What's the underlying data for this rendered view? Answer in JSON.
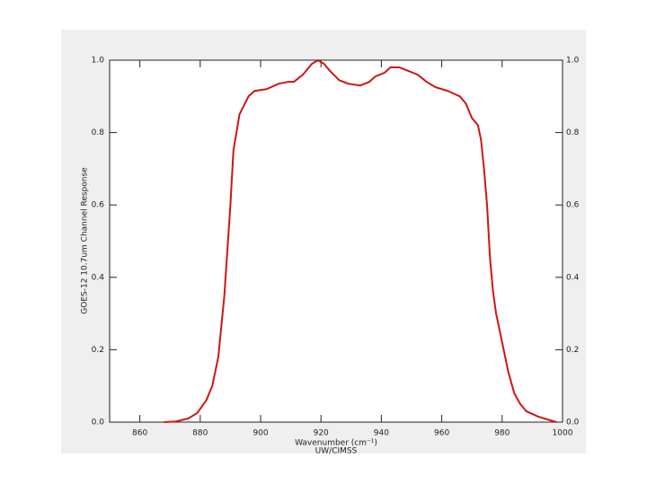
{
  "chart_data": {
    "type": "line",
    "xlabel": "Wavenumber (cm⁻¹)",
    "ylabel": "GOES-12 10.7um Channel Response",
    "footer": "UW/CIMSS",
    "x": [
      868,
      872,
      876,
      879,
      882,
      884,
      886,
      888,
      890,
      891,
      893,
      896,
      898,
      902,
      906,
      909,
      911,
      914,
      917,
      919,
      921,
      923,
      926,
      929,
      933,
      936,
      938,
      941,
      943,
      946,
      949,
      952,
      955,
      958,
      962,
      966,
      968,
      970,
      972,
      973,
      974,
      975,
      976,
      977,
      978,
      980,
      982,
      984,
      986,
      988,
      992,
      996,
      998
    ],
    "series": [
      {
        "color": "#d01414",
        "values": [
          0.0,
          0.002,
          0.01,
          0.025,
          0.06,
          0.1,
          0.18,
          0.35,
          0.6,
          0.75,
          0.85,
          0.9,
          0.915,
          0.92,
          0.935,
          0.94,
          0.94,
          0.96,
          0.99,
          1.0,
          0.99,
          0.97,
          0.945,
          0.935,
          0.93,
          0.94,
          0.955,
          0.965,
          0.98,
          0.98,
          0.97,
          0.96,
          0.94,
          0.925,
          0.915,
          0.9,
          0.88,
          0.84,
          0.82,
          0.78,
          0.7,
          0.6,
          0.45,
          0.36,
          0.3,
          0.22,
          0.14,
          0.08,
          0.05,
          0.03,
          0.015,
          0.005,
          0.0
        ]
      }
    ],
    "xlim": [
      850,
      1000
    ],
    "xticks": [
      860,
      880,
      900,
      920,
      940,
      960,
      980,
      1000
    ],
    "ylim": [
      0,
      1
    ],
    "yticks": [
      {
        "value": 0,
        "label": "0.0"
      },
      {
        "value": 0.2,
        "label": "0.2"
      },
      {
        "value": 0.4,
        "label": "0.4"
      },
      {
        "value": 0.6,
        "label": "0.6"
      },
      {
        "value": 0.8,
        "label": "0.8"
      },
      {
        "value": 1,
        "label": "1.0"
      }
    ],
    "y2lim": [
      0,
      1
    ],
    "y2ticks": [
      {
        "value": 0,
        "label": "0.0"
      },
      {
        "value": 0.2,
        "label": "0.2"
      },
      {
        "value": 0.4,
        "label": "0.4"
      },
      {
        "value": 0.6,
        "label": "0.6"
      },
      {
        "value": 0.8,
        "label": "0.8"
      },
      {
        "value": 1,
        "label": "1.0"
      }
    ]
  }
}
